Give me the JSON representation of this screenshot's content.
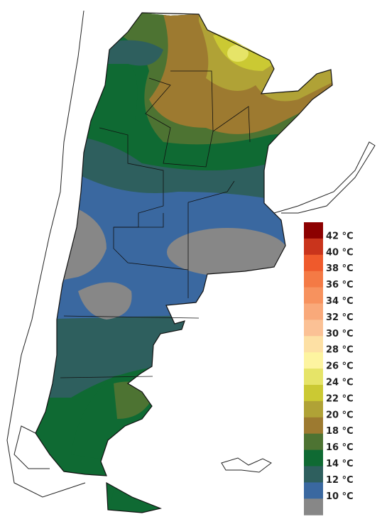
{
  "legend": {
    "labels": [
      "42 °C",
      "40 °C",
      "38 °C",
      "36 °C",
      "34 °C",
      "32 °C",
      "30 °C",
      "28 °C",
      "26 °C",
      "24 °C",
      "22 °C",
      "20 °C",
      "18 °C",
      "16 °C",
      "14 °C",
      "12 °C",
      "10 °C"
    ],
    "colors": [
      "#8c0000",
      "#c9341c",
      "#ef5a2c",
      "#f47a45",
      "#f7925e",
      "#f9a97a",
      "#fbc195",
      "#fde0a4",
      "#fdf4a0",
      "#e6e468",
      "#cbc933",
      "#b0a236",
      "#9d7a30",
      "#4d7332",
      "#0f6a33",
      "#2e5f5e",
      "#3a68a0",
      "#878787"
    ]
  }
}
